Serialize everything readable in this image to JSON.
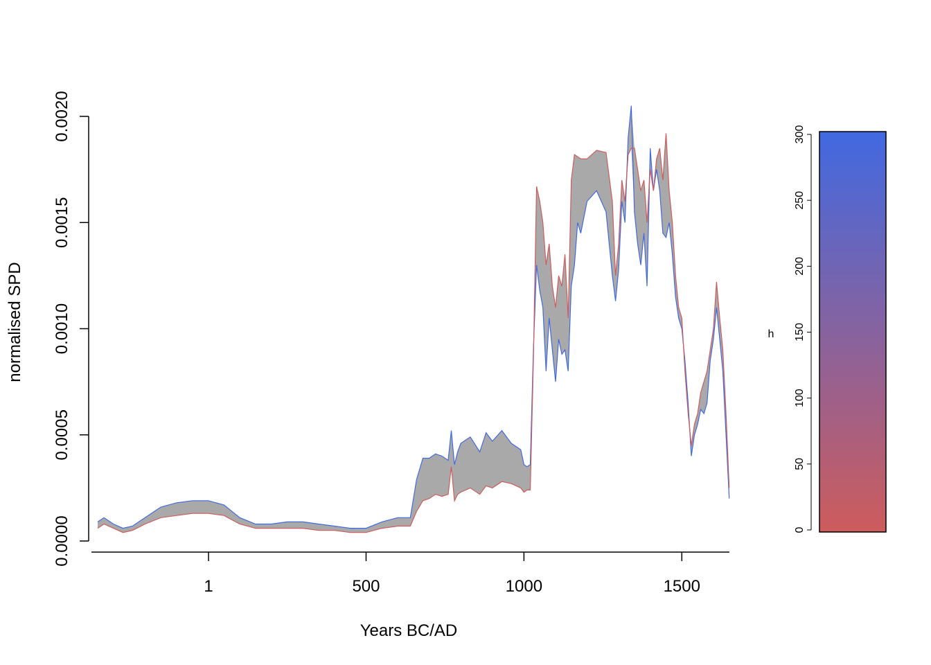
{
  "chart_data": [
    {
      "type": "area",
      "xlabel": "Years BC/AD",
      "ylabel": "normalised SPD",
      "xlim": [
        -440,
        1710
      ],
      "ylim": [
        0,
        0.002
      ],
      "x_ticks": [
        {
          "value": 1,
          "label": "1"
        },
        {
          "value": 500,
          "label": "500"
        },
        {
          "value": 1000,
          "label": "1000"
        },
        {
          "value": 1500,
          "label": "1500"
        }
      ],
      "y_ticks": [
        {
          "value": 0.0,
          "label": "0.0000"
        },
        {
          "value": 0.0005,
          "label": "0.0005"
        },
        {
          "value": 0.001,
          "label": "0.0010"
        },
        {
          "value": 0.0015,
          "label": "0.0015"
        },
        {
          "value": 0.002,
          "label": "0.0020"
        }
      ],
      "envelope_color": "#a9a9a9",
      "x": [
        -350,
        -330,
        -300,
        -270,
        -240,
        -200,
        -150,
        -100,
        -50,
        0,
        50,
        100,
        150,
        200,
        250,
        300,
        350,
        400,
        450,
        500,
        550,
        600,
        640,
        660,
        680,
        700,
        720,
        740,
        760,
        770,
        780,
        790,
        800,
        830,
        860,
        880,
        900,
        930,
        960,
        990,
        1000,
        1010,
        1020,
        1030,
        1040,
        1050,
        1060,
        1070,
        1080,
        1090,
        1100,
        1110,
        1120,
        1130,
        1140,
        1150,
        1160,
        1170,
        1180,
        1200,
        1230,
        1260,
        1280,
        1290,
        1300,
        1310,
        1320,
        1330,
        1340,
        1350,
        1360,
        1370,
        1380,
        1390,
        1400,
        1410,
        1420,
        1430,
        1440,
        1450,
        1460,
        1470,
        1480,
        1490,
        1500,
        1510,
        1520,
        1530,
        1540,
        1550,
        1560,
        1570,
        1580,
        1590,
        1600,
        1610,
        1620,
        1630,
        1640,
        1650
      ],
      "series": [
        {
          "name": "",
          "color": "#4169e1",
          "values": [
            9e-05,
            0.00011,
            8e-05,
            6e-05,
            7e-05,
            0.00011,
            0.00016,
            0.00018,
            0.00019,
            0.00019,
            0.00017,
            0.00011,
            8e-05,
            8e-05,
            9e-05,
            9e-05,
            8e-05,
            7e-05,
            6e-05,
            6e-05,
            9e-05,
            0.00011,
            0.00011,
            0.00029,
            0.00039,
            0.00039,
            0.00041,
            0.0004,
            0.00038,
            0.00052,
            0.00036,
            0.00042,
            0.00046,
            0.00049,
            0.00042,
            0.00051,
            0.00047,
            0.00052,
            0.00046,
            0.00043,
            0.00036,
            0.00035,
            0.00036,
            0.0009,
            0.0013,
            0.00118,
            0.0011,
            0.0008,
            0.00105,
            0.0009,
            0.00075,
            0.00095,
            0.00088,
            0.0009,
            0.0008,
            0.0012,
            0.0013,
            0.0015,
            0.00145,
            0.0016,
            0.00165,
            0.00155,
            0.00125,
            0.00113,
            0.00128,
            0.0016,
            0.0015,
            0.0019,
            0.00205,
            0.00155,
            0.0014,
            0.0013,
            0.00145,
            0.0012,
            0.00185,
            0.00165,
            0.00175,
            0.00165,
            0.00145,
            0.00143,
            0.0015,
            0.00135,
            0.00115,
            0.00105,
            0.001,
            0.00085,
            0.00065,
            0.0004,
            0.0005,
            0.00055,
            0.00062,
            0.0006,
            0.00065,
            0.00085,
            0.00095,
            0.0011,
            0.00095,
            0.0008,
            0.0005,
            0.0002
          ]
        },
        {
          "name": "",
          "color": "#cd5c5c",
          "values": [
            6e-05,
            8e-05,
            6e-05,
            4e-05,
            5e-05,
            8e-05,
            0.00011,
            0.00012,
            0.00013,
            0.00013,
            0.00012,
            8e-05,
            6e-05,
            6e-05,
            6e-05,
            6e-05,
            5e-05,
            5e-05,
            4e-05,
            4e-05,
            6e-05,
            7e-05,
            7e-05,
            0.00014,
            0.00019,
            0.0002,
            0.00022,
            0.00021,
            0.00022,
            0.00035,
            0.00019,
            0.00022,
            0.00023,
            0.00025,
            0.00022,
            0.00026,
            0.00025,
            0.00028,
            0.00027,
            0.00025,
            0.00023,
            0.00024,
            0.00024,
            0.00085,
            0.00167,
            0.0016,
            0.0015,
            0.0013,
            0.0014,
            0.0012,
            0.0011,
            0.00125,
            0.0012,
            0.00135,
            0.00105,
            0.0017,
            0.00182,
            0.00181,
            0.0018,
            0.0018,
            0.00184,
            0.00183,
            0.0016,
            0.00125,
            0.0014,
            0.0017,
            0.0016,
            0.00182,
            0.00185,
            0.00185,
            0.00175,
            0.00165,
            0.0017,
            0.0015,
            0.00175,
            0.00165,
            0.0018,
            0.00185,
            0.0017,
            0.00192,
            0.00165,
            0.0015,
            0.00125,
            0.0011,
            0.00105,
            0.0008,
            0.0006,
            0.00045,
            0.00055,
            0.0006,
            0.0007,
            0.00075,
            0.0008,
            0.0009,
            0.001,
            0.00122,
            0.00105,
            0.0009,
            0.0006,
            0.00025
          ]
        }
      ]
    },
    {
      "type": "heatmap",
      "label": "h",
      "color_low": "#cd5c5c",
      "color_high": "#4169e1",
      "range": [
        0,
        300
      ],
      "ticks": [
        {
          "value": 0,
          "label": "0"
        },
        {
          "value": 50,
          "label": "50"
        },
        {
          "value": 100,
          "label": "100"
        },
        {
          "value": 150,
          "label": "150"
        },
        {
          "value": 200,
          "label": "200"
        },
        {
          "value": 250,
          "label": "250"
        },
        {
          "value": 300,
          "label": "300"
        }
      ]
    }
  ]
}
